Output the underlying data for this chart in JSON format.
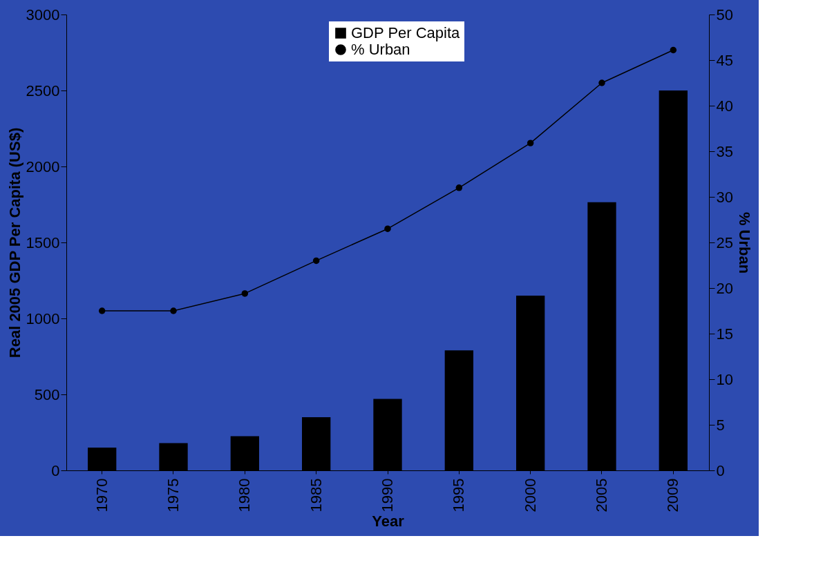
{
  "chart_data": {
    "type": "bar",
    "categories": [
      "1970",
      "1975",
      "1980",
      "1985",
      "1990",
      "1995",
      "2000",
      "2005",
      "2009"
    ],
    "series": [
      {
        "name": "GDP Per Capita",
        "type": "bar",
        "color": "#000000",
        "values": [
          150,
          180,
          225,
          350,
          470,
          790,
          1150,
          1765,
          2500
        ]
      },
      {
        "name": "% Urban",
        "type": "line",
        "axis": "y2",
        "color": "#000000",
        "values": [
          17.5,
          17.5,
          19.4,
          23.0,
          26.5,
          31.0,
          35.9,
          42.5,
          46.1
        ]
      }
    ],
    "xlabel": "Year",
    "ylabel": "Real 2005 GDP Per Capita (US$)",
    "y2label": "% Urban",
    "ylim": [
      0,
      3000
    ],
    "yticks": [
      0,
      500,
      1000,
      1500,
      2000,
      2500,
      3000
    ],
    "y2lim": [
      0,
      50
    ],
    "y2ticks": [
      0,
      5,
      10,
      15,
      20,
      25,
      30,
      35,
      40,
      45,
      50
    ],
    "grid": false,
    "legend": "top",
    "marker": "circle"
  }
}
